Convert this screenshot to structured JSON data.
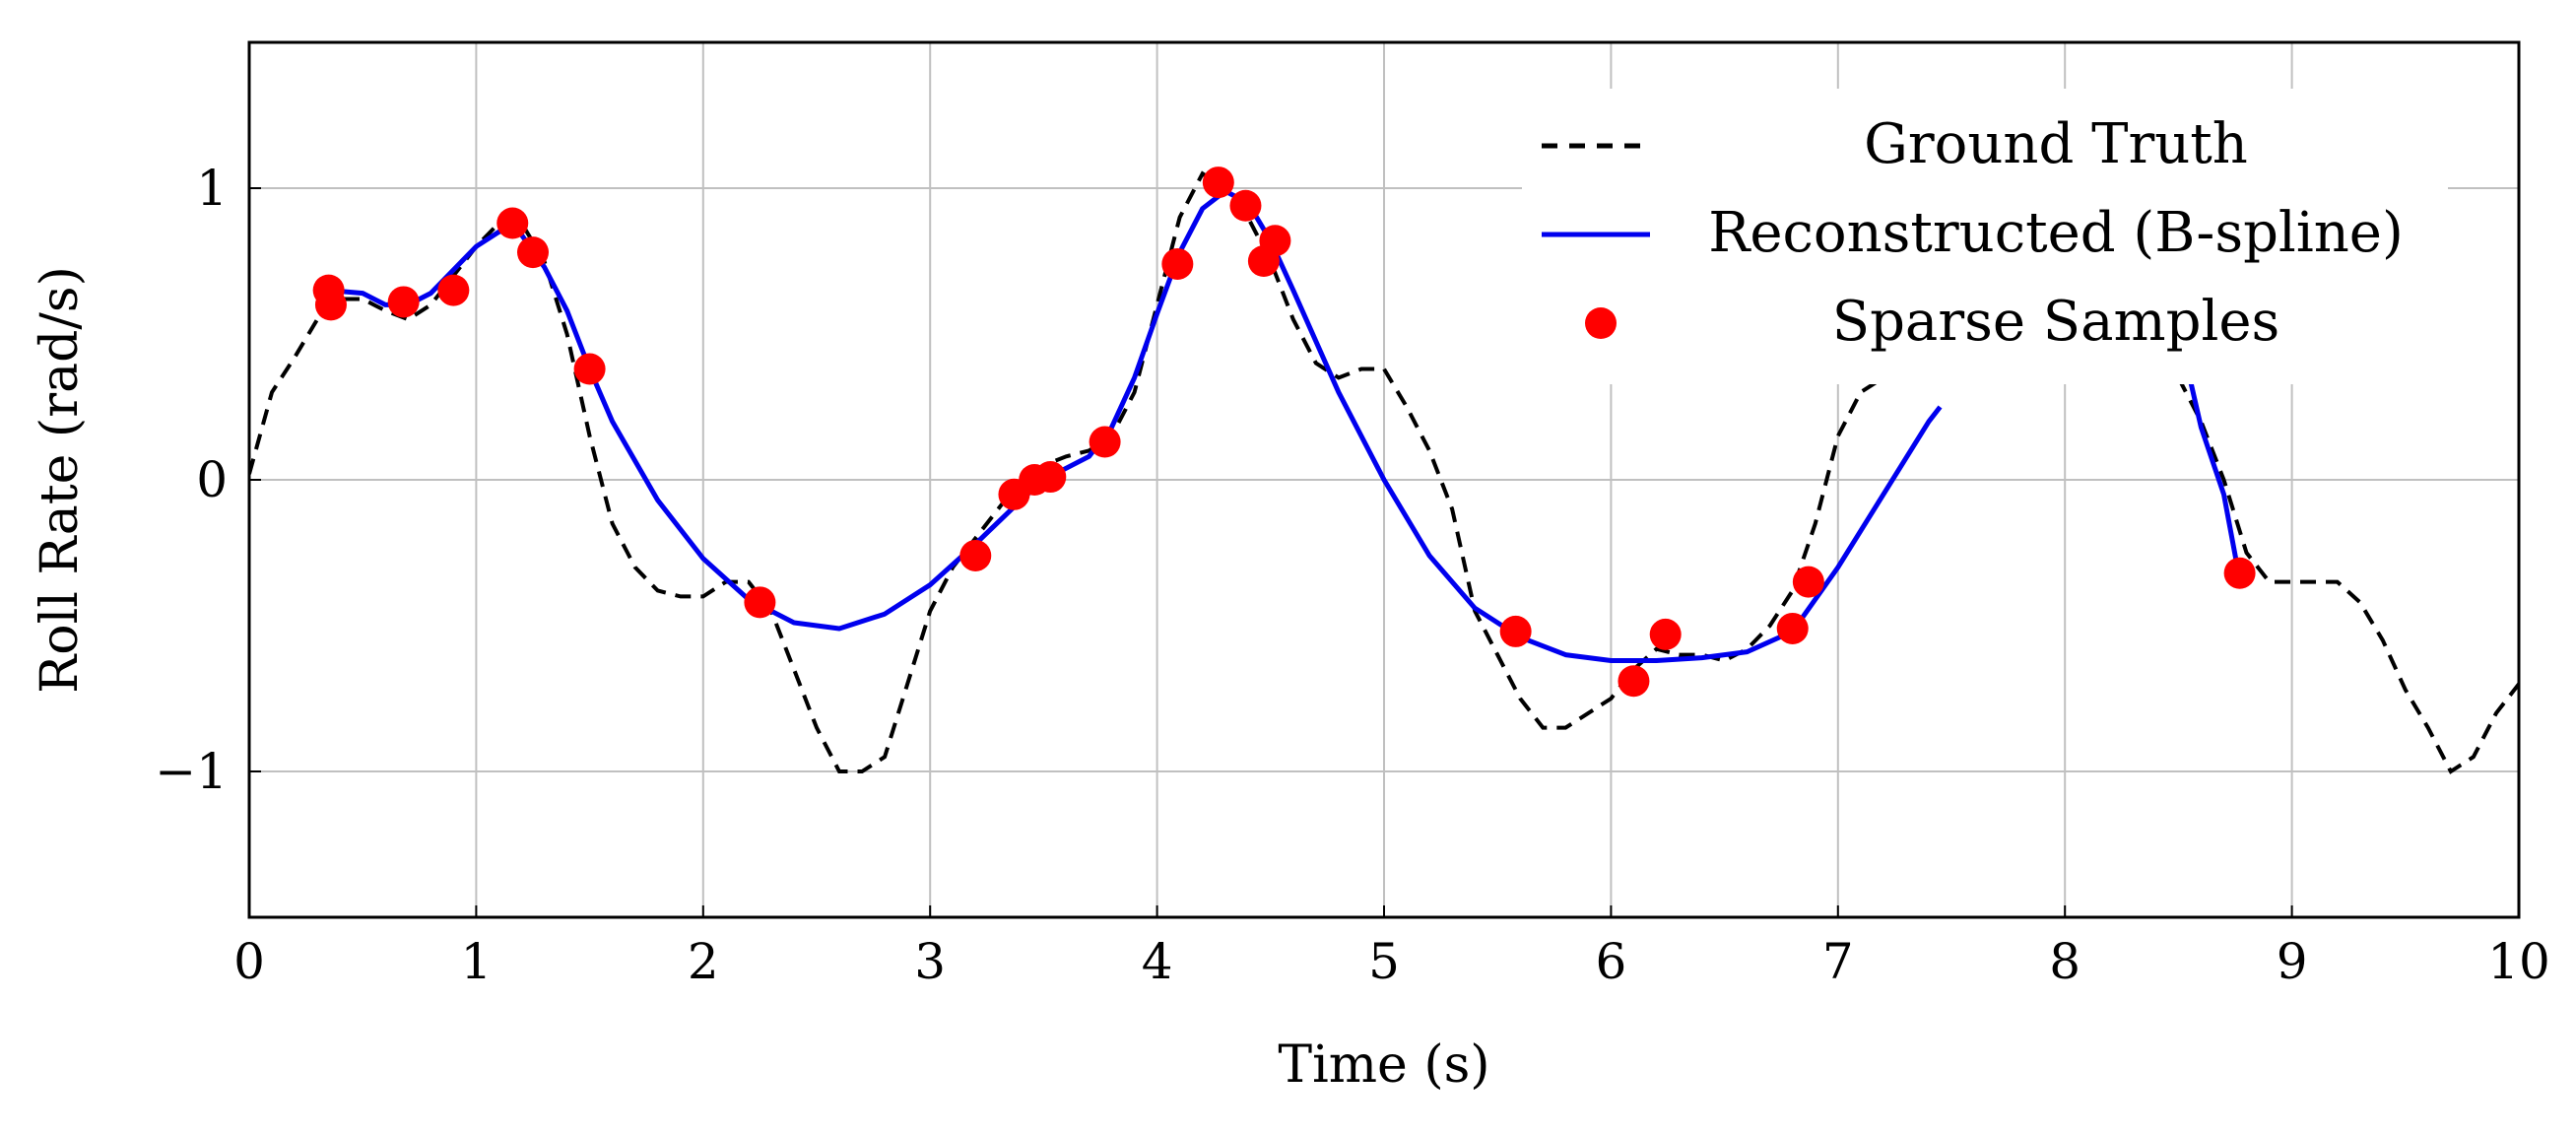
{
  "chart_data": {
    "type": "line",
    "title": "",
    "xlabel": "Time (s)",
    "ylabel": "Roll Rate (rad/s)",
    "xlim": [
      0,
      10
    ],
    "ylim": [
      -1.5,
      1.5
    ],
    "xticks": [
      0,
      1,
      2,
      3,
      4,
      5,
      6,
      7,
      8,
      9,
      10
    ],
    "xtick_labels": [
      "0",
      "1",
      "2",
      "3",
      "4",
      "5",
      "6",
      "7",
      "8",
      "9",
      "10"
    ],
    "yticks": [
      -1,
      0,
      1
    ],
    "ytick_labels": [
      "−1",
      "0",
      "1"
    ],
    "grid": true,
    "legend_position": "top-right",
    "series": [
      {
        "name": "Ground Truth",
        "style": "dashed",
        "color": "#000000",
        "x": [
          0,
          0.1,
          0.2,
          0.3,
          0.4,
          0.5,
          0.6,
          0.7,
          0.8,
          0.9,
          1.0,
          1.1,
          1.2,
          1.3,
          1.4,
          1.5,
          1.6,
          1.7,
          1.8,
          1.9,
          2.0,
          2.1,
          2.2,
          2.3,
          2.4,
          2.5,
          2.6,
          2.7,
          2.8,
          2.9,
          3.0,
          3.1,
          3.2,
          3.3,
          3.4,
          3.5,
          3.6,
          3.7,
          3.8,
          3.9,
          4.0,
          4.1,
          4.2,
          4.3,
          4.4,
          4.5,
          4.6,
          4.7,
          4.8,
          4.9,
          5.0,
          5.1,
          5.2,
          5.3,
          5.4,
          5.5,
          5.6,
          5.7,
          5.8,
          5.9,
          6.0,
          6.1,
          6.2,
          6.3,
          6.4,
          6.5,
          6.6,
          6.7,
          6.8,
          6.9,
          7.0,
          7.1,
          7.2,
          8.5,
          8.6,
          8.7,
          8.8,
          8.9,
          9.0,
          9.1,
          9.2,
          9.3,
          9.4,
          9.5,
          9.6,
          9.7,
          9.8,
          9.9,
          10.0
        ],
        "y": [
          0.02,
          0.3,
          0.42,
          0.55,
          0.62,
          0.62,
          0.58,
          0.55,
          0.6,
          0.7,
          0.8,
          0.88,
          0.88,
          0.75,
          0.5,
          0.15,
          -0.15,
          -0.3,
          -0.38,
          -0.4,
          -0.4,
          -0.35,
          -0.35,
          -0.45,
          -0.65,
          -0.85,
          -1.0,
          -1.0,
          -0.95,
          -0.7,
          -0.45,
          -0.3,
          -0.2,
          -0.1,
          0.0,
          0.05,
          0.08,
          0.1,
          0.15,
          0.3,
          0.6,
          0.9,
          1.05,
          1.0,
          0.9,
          0.75,
          0.55,
          0.4,
          0.35,
          0.38,
          0.38,
          0.25,
          0.1,
          -0.1,
          -0.45,
          -0.6,
          -0.75,
          -0.85,
          -0.85,
          -0.8,
          -0.75,
          -0.65,
          -0.58,
          -0.6,
          -0.6,
          -0.62,
          -0.58,
          -0.5,
          -0.38,
          -0.15,
          0.15,
          0.3,
          0.35,
          0.35,
          0.2,
          0.0,
          -0.25,
          -0.35,
          -0.35,
          -0.35,
          -0.35,
          -0.42,
          -0.55,
          -0.72,
          -0.85,
          -1.0,
          -0.95,
          -0.8,
          -0.7
        ]
      },
      {
        "name": "Reconstructed (B-spline)",
        "style": "solid",
        "color": "#0000ee",
        "x": [
          0.35,
          0.5,
          0.6,
          0.7,
          0.8,
          0.9,
          1.0,
          1.1,
          1.15,
          1.2,
          1.3,
          1.4,
          1.5,
          1.6,
          1.8,
          2.0,
          2.2,
          2.4,
          2.6,
          2.8,
          3.0,
          3.2,
          3.4,
          3.5,
          3.6,
          3.7,
          3.8,
          3.9,
          4.0,
          4.1,
          4.2,
          4.3,
          4.4,
          4.5,
          4.6,
          4.8,
          5.0,
          5.2,
          5.4,
          5.6,
          5.8,
          6.0,
          6.2,
          6.4,
          6.6,
          6.8,
          7.0,
          7.2,
          7.4,
          7.45,
          8.55,
          8.6,
          8.7,
          8.76
        ],
        "y": [
          0.65,
          0.64,
          0.6,
          0.6,
          0.64,
          0.72,
          0.8,
          0.85,
          0.86,
          0.84,
          0.73,
          0.58,
          0.38,
          0.2,
          -0.07,
          -0.27,
          -0.41,
          -0.49,
          -0.51,
          -0.46,
          -0.36,
          -0.22,
          -0.07,
          0.0,
          0.04,
          0.08,
          0.18,
          0.35,
          0.57,
          0.78,
          0.93,
          0.99,
          0.95,
          0.82,
          0.65,
          0.3,
          0.0,
          -0.26,
          -0.44,
          -0.54,
          -0.6,
          -0.62,
          -0.62,
          -0.61,
          -0.59,
          -0.52,
          -0.3,
          -0.05,
          0.2,
          0.25,
          0.35,
          0.18,
          -0.05,
          -0.3
        ]
      },
      {
        "name": "Sparse Samples",
        "style": "markers",
        "color": "#ff0000",
        "x": [
          0.35,
          0.36,
          0.68,
          0.9,
          1.16,
          1.25,
          1.5,
          2.25,
          3.2,
          3.37,
          3.46,
          3.53,
          3.77,
          4.09,
          4.27,
          4.39,
          4.47,
          4.52,
          5.58,
          6.1,
          6.24,
          6.8,
          6.87,
          8.77
        ],
        "y": [
          0.65,
          0.6,
          0.61,
          0.65,
          0.88,
          0.78,
          0.38,
          -0.42,
          -0.26,
          -0.05,
          0.0,
          0.01,
          0.13,
          0.74,
          1.02,
          0.94,
          0.75,
          0.82,
          -0.52,
          -0.69,
          -0.53,
          -0.51,
          -0.35,
          -0.32
        ]
      }
    ]
  }
}
